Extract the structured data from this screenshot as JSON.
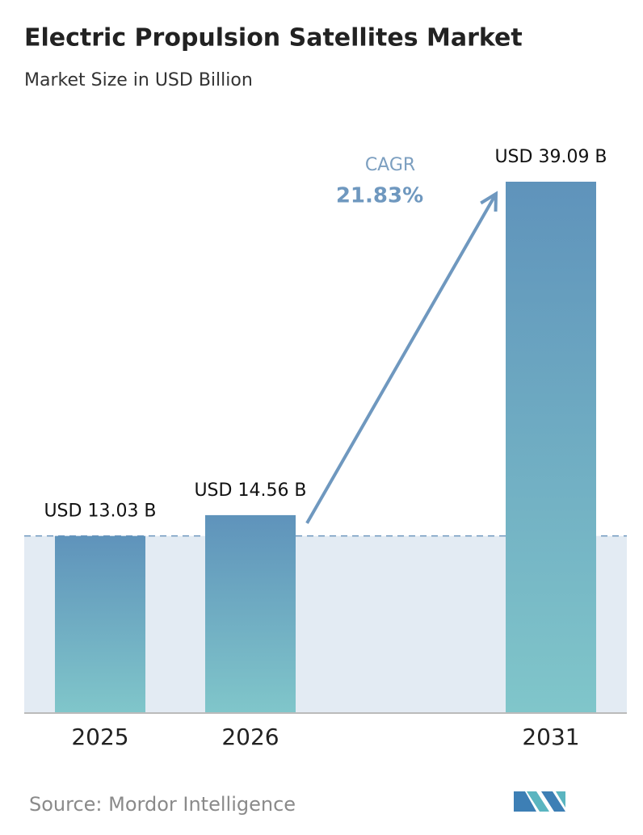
{
  "chart_data": {
    "type": "bar",
    "title": "Electric Propulsion Satellites Market",
    "subtitle": "Market Size in USD Billion",
    "categories": [
      "2025",
      "2026",
      "2031"
    ],
    "values": [
      13.03,
      14.56,
      39.09
    ],
    "value_labels": [
      "USD 13.03 B",
      "USD 14.56 B",
      "USD 39.09 B"
    ],
    "color": "#5f93bb",
    "annotations": {
      "label": "CAGR",
      "value": "21.83%"
    },
    "source": "Source: Mordor Intelligence"
  }
}
